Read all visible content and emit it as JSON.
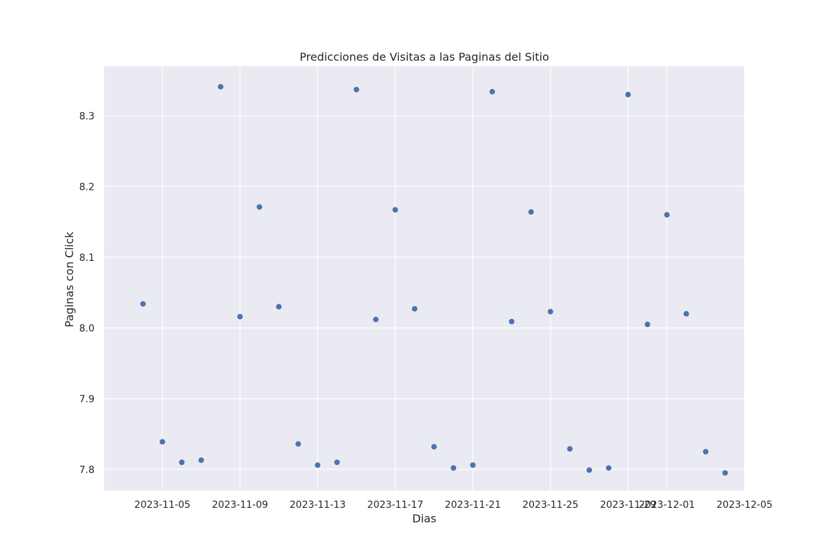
{
  "chart_data": {
    "type": "scatter",
    "title": "Predicciones de Visitas a las Paginas del Sitio",
    "xlabel": "Dias",
    "ylabel": "Paginas con Click",
    "x_type": "date",
    "xlim": [
      "2023-11-02",
      "2023-12-05"
    ],
    "ylim": [
      7.77,
      8.37
    ],
    "xticks": [
      "2023-11-05",
      "2023-11-09",
      "2023-11-13",
      "2023-11-17",
      "2023-11-21",
      "2023-11-25",
      "2023-11-29",
      "2023-12-01",
      "2023-12-05"
    ],
    "yticks": [
      7.8,
      7.9,
      8.0,
      8.1,
      8.2,
      8.3
    ],
    "ytick_labels": [
      "7.8",
      "7.9",
      "8.0",
      "8.1",
      "8.2",
      "8.3"
    ],
    "grid": true,
    "colors": {
      "background": "#eaeaf2",
      "grid": "#ffffff",
      "marker": "#4c72b0"
    },
    "points": [
      {
        "x": "2023-11-04",
        "y": 8.034
      },
      {
        "x": "2023-11-05",
        "y": 7.839
      },
      {
        "x": "2023-11-06",
        "y": 7.81
      },
      {
        "x": "2023-11-07",
        "y": 7.813
      },
      {
        "x": "2023-11-08",
        "y": 8.341
      },
      {
        "x": "2023-11-09",
        "y": 8.016
      },
      {
        "x": "2023-11-10",
        "y": 8.171
      },
      {
        "x": "2023-11-11",
        "y": 8.03
      },
      {
        "x": "2023-11-12",
        "y": 7.836
      },
      {
        "x": "2023-11-13",
        "y": 7.806
      },
      {
        "x": "2023-11-14",
        "y": 7.81
      },
      {
        "x": "2023-11-15",
        "y": 8.337
      },
      {
        "x": "2023-11-16",
        "y": 8.012
      },
      {
        "x": "2023-11-17",
        "y": 8.167
      },
      {
        "x": "2023-11-18",
        "y": 8.027
      },
      {
        "x": "2023-11-19",
        "y": 7.832
      },
      {
        "x": "2023-11-20",
        "y": 7.802
      },
      {
        "x": "2023-11-21",
        "y": 7.806
      },
      {
        "x": "2023-11-22",
        "y": 8.334
      },
      {
        "x": "2023-11-23",
        "y": 8.009
      },
      {
        "x": "2023-11-24",
        "y": 8.164
      },
      {
        "x": "2023-11-25",
        "y": 8.023
      },
      {
        "x": "2023-11-26",
        "y": 7.829
      },
      {
        "x": "2023-11-27",
        "y": 7.799
      },
      {
        "x": "2023-11-28",
        "y": 7.802
      },
      {
        "x": "2023-11-29",
        "y": 8.33
      },
      {
        "x": "2023-11-30",
        "y": 8.005
      },
      {
        "x": "2023-12-01",
        "y": 8.16
      },
      {
        "x": "2023-12-02",
        "y": 8.02
      },
      {
        "x": "2023-12-03",
        "y": 7.825
      },
      {
        "x": "2023-12-04",
        "y": 7.795
      }
    ]
  }
}
